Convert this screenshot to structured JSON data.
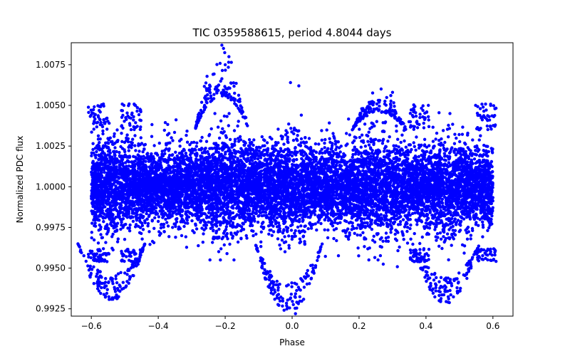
{
  "chart_data": {
    "type": "scatter",
    "title": "TIC 0359588615, period 4.8044 days",
    "xlabel": "Phase",
    "ylabel": "Normalized PDC flux",
    "xlim": [
      -0.66,
      0.66
    ],
    "ylim": [
      0.99205,
      1.00885
    ],
    "xticks": [
      -0.6,
      -0.4,
      -0.2,
      0.0,
      0.2,
      0.4,
      0.6
    ],
    "xtick_labels": [
      "−0.6",
      "−0.4",
      "−0.2",
      "0.0",
      "0.2",
      "0.4",
      "0.6"
    ],
    "yticks": [
      0.9925,
      0.995,
      0.9975,
      1.0,
      1.0025,
      1.005,
      1.0075
    ],
    "ytick_labels": [
      "0.9925",
      "0.9950",
      "0.9975",
      "1.0000",
      "1.0025",
      "1.0050",
      "1.0075"
    ],
    "grid": false,
    "marker_color": "#0000ff",
    "band": {
      "x_range": [
        -0.6,
        0.6
      ],
      "center": 1.0,
      "core_spread": 0.0011,
      "outer_spread": 0.0016,
      "point_count": 9000
    },
    "dips": [
      {
        "x": -0.54,
        "y_min": 0.993
      },
      {
        "x": -0.01,
        "y_min": 0.9922
      },
      {
        "x": 0.46,
        "y_min": 0.9928
      }
    ],
    "peaks": [
      {
        "x": -0.21,
        "y_max": 1.0087
      },
      {
        "x": 0.26,
        "y_max": 1.0062
      }
    ],
    "outliers": [
      {
        "x": -0.21,
        "y": 1.0087
      },
      {
        "x": -0.205,
        "y": 1.0085
      },
      {
        "x": -0.2,
        "y": 1.0075
      },
      {
        "x": -0.005,
        "y": 1.0064
      },
      {
        "x": -0.58,
        "y": 0.9948
      },
      {
        "x": 0.59,
        "y": 1.0041
      },
      {
        "x": 0.02,
        "y": 1.0062
      },
      {
        "x": 0.01,
        "y": 0.9922
      },
      {
        "x": 0.3,
        "y": 1.0058
      }
    ]
  }
}
